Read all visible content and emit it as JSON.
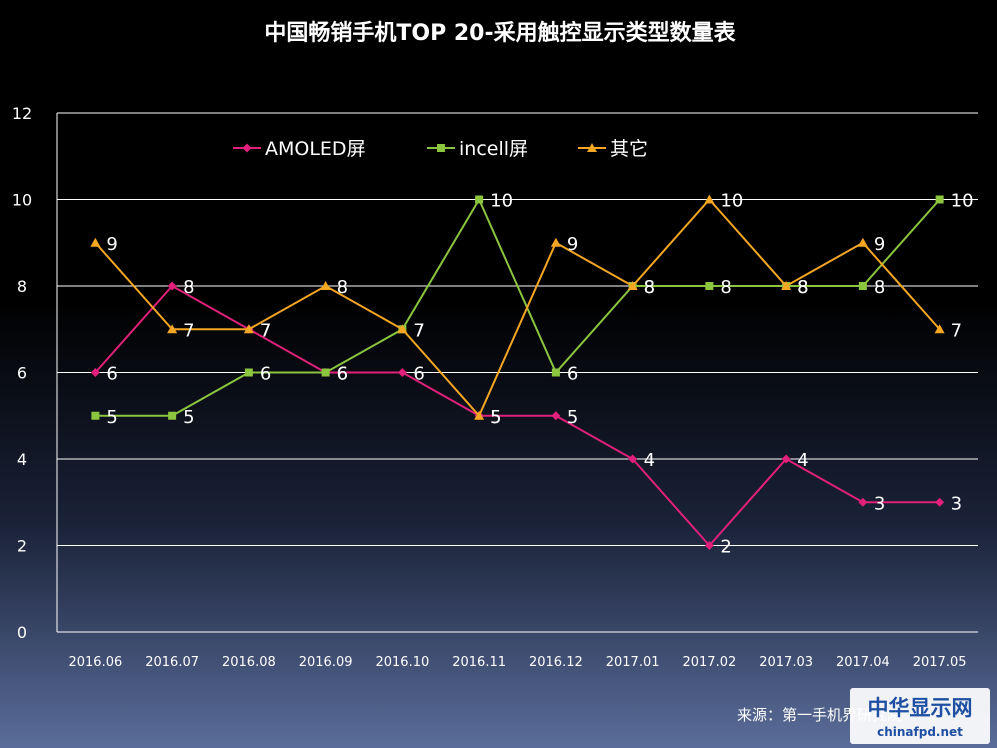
{
  "chart_data": {
    "type": "line",
    "title": "中国畅销手机TOP 20-采用触控显示类型数量表",
    "categories": [
      "2016.06",
      "2016.07",
      "2016.08",
      "2016.09",
      "2016.10",
      "2016.11",
      "2016.12",
      "2017.01",
      "2017.02",
      "2017.03",
      "2017.04",
      "2017.05"
    ],
    "ylim": [
      0,
      12
    ],
    "yticks": [
      0,
      2,
      4,
      6,
      8,
      10,
      12
    ],
    "grid": true,
    "legend_position": "top-left",
    "series": [
      {
        "name": "AMOLED屏",
        "color": "#e0207a",
        "marker": "diamond",
        "values": [
          6,
          8,
          7,
          6,
          6,
          5,
          5,
          4,
          2,
          4,
          3,
          3
        ]
      },
      {
        "name": "incell屏",
        "color": "#8cc63f",
        "marker": "square",
        "values": [
          5,
          5,
          6,
          6,
          7,
          10,
          6,
          8,
          8,
          8,
          8,
          10
        ]
      },
      {
        "name": "其它",
        "color": "#f5a623",
        "marker": "triangle",
        "values": [
          9,
          7,
          7,
          8,
          7,
          5,
          9,
          8,
          10,
          8,
          9,
          7
        ]
      }
    ]
  },
  "source": "来源：第一手机界研究院",
  "logo": {
    "main": "中华显示网",
    "sub": "chinafpd.net"
  }
}
